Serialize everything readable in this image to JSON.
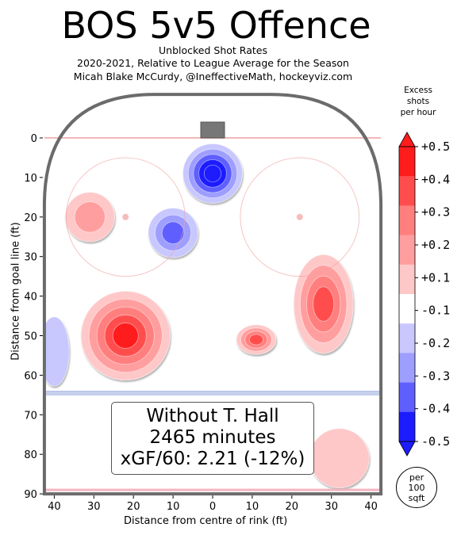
{
  "header": {
    "title": "BOS 5v5 Offence",
    "subtitle_lines": [
      "Unblocked Shot Rates",
      "2020-2021, Relative to League Average for the Season",
      "Micah Blake McCurdy, @IneffectiveMath, hockeyviz.com"
    ]
  },
  "infobox": {
    "line1": "Without T. Hall",
    "line2": "2465 minutes",
    "line3": "xGF/60: 2.21 (-12%)"
  },
  "colorbar": {
    "label_lines": [
      "Excess",
      "shots",
      "per hour"
    ],
    "tick_labels": [
      "+0.5",
      "+0.4",
      "+0.3",
      "+0.2",
      "+0.1",
      "-0.1",
      "-0.2",
      "-0.3",
      "-0.4",
      "-0.5"
    ],
    "colors": [
      "#ff1c1c",
      "#ff4d4d",
      "#ff7f7f",
      "#ff9e9e",
      "#ffc8c8",
      "#ffffff",
      "#c8c8ff",
      "#9e9eff",
      "#5f5fff",
      "#1c1cff"
    ],
    "unit_lines": [
      "per",
      "100",
      "sqft"
    ]
  },
  "chart_data": {
    "type": "heatmap",
    "title": "BOS 5v5 Offence",
    "xlabel": "Distance from centre of rink (ft)",
    "ylabel": "Distance from goal line (ft)",
    "xlim": [
      -42.5,
      42.5
    ],
    "ylim": [
      90,
      -11
    ],
    "x_ticks": [
      -40,
      -30,
      -20,
      -10,
      0,
      10,
      20,
      30,
      40
    ],
    "x_tick_labels": [
      "40",
      "30",
      "20",
      "10",
      "0",
      "10",
      "20",
      "30",
      "40"
    ],
    "y_ticks": [
      0,
      10,
      20,
      30,
      40,
      50,
      60,
      70,
      80,
      90
    ],
    "y_tick_labels": [
      "0",
      "10",
      "20",
      "30",
      "40",
      "50",
      "60",
      "70",
      "80",
      "90"
    ],
    "value_range": [
      -0.5,
      0.5
    ],
    "grid": false,
    "regions": [
      {
        "name": "slot-blue-core",
        "cx": 0,
        "cy": 9,
        "rx": 6,
        "ry": 6,
        "value": -0.5
      },
      {
        "name": "left-circle-blue",
        "cx": -10,
        "cy": 24,
        "rx": 5,
        "ry": 5,
        "value": -0.3
      },
      {
        "name": "left-point-red",
        "cx": -22,
        "cy": 50,
        "rx": 9,
        "ry": 9,
        "value": 0.5
      },
      {
        "name": "right-circle-red",
        "cx": 28,
        "cy": 42,
        "rx": 6,
        "ry": 10,
        "value": 0.4
      },
      {
        "name": "right-high-red",
        "cx": 11,
        "cy": 51,
        "rx": 4,
        "ry": 3,
        "value": 0.4
      },
      {
        "name": "left-faceoff-pink",
        "cx": -31,
        "cy": 20,
        "rx": 5,
        "ry": 5,
        "value": 0.2
      },
      {
        "name": "left-boards-blue",
        "cx": -40,
        "cy": 54,
        "rx": 3,
        "ry": 7,
        "value": -0.1
      },
      {
        "name": "neutral-right-pink",
        "cx": 32,
        "cy": 81,
        "rx": 6,
        "ry": 6,
        "value": 0.1
      }
    ]
  }
}
